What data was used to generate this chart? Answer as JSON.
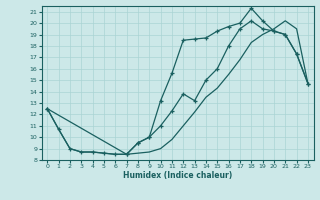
{
  "xlabel": "Humidex (Indice chaleur)",
  "bg_color": "#cce8e8",
  "line_color": "#1a6060",
  "grid_color": "#aad4d4",
  "xlim": [
    -0.5,
    23.5
  ],
  "ylim": [
    8,
    21.5
  ],
  "xticks": [
    0,
    1,
    2,
    3,
    4,
    5,
    6,
    7,
    8,
    9,
    10,
    11,
    12,
    13,
    14,
    15,
    16,
    17,
    18,
    19,
    20,
    21,
    22,
    23
  ],
  "yticks": [
    8,
    9,
    10,
    11,
    12,
    13,
    14,
    15,
    16,
    17,
    18,
    19,
    20,
    21
  ],
  "line1_x": [
    0,
    1,
    2,
    3,
    4,
    5,
    6,
    7,
    8,
    9,
    10,
    11,
    12,
    13,
    14,
    15,
    16,
    17,
    18,
    19,
    20,
    21,
    22,
    23
  ],
  "line1_y": [
    12.5,
    10.7,
    9.0,
    8.7,
    8.7,
    8.6,
    8.5,
    8.5,
    9.5,
    10.0,
    13.2,
    15.6,
    18.5,
    18.6,
    18.7,
    19.3,
    19.7,
    20.0,
    21.3,
    20.2,
    19.3,
    19.0,
    17.3,
    14.7
  ],
  "line2_x": [
    0,
    1,
    2,
    3,
    4,
    5,
    6,
    7,
    8,
    9,
    10,
    11,
    12,
    13,
    14,
    15,
    16,
    17,
    18,
    19,
    20,
    21,
    22,
    23
  ],
  "line2_y": [
    12.5,
    10.7,
    9.0,
    8.7,
    8.7,
    8.6,
    8.5,
    8.5,
    8.6,
    8.7,
    9.0,
    9.8,
    11.0,
    12.2,
    13.5,
    14.3,
    15.5,
    16.8,
    18.3,
    19.0,
    19.5,
    20.2,
    19.5,
    14.7
  ],
  "line3_x": [
    0,
    7,
    8,
    9,
    10,
    11,
    12,
    13,
    14,
    15,
    16,
    17,
    18,
    19,
    20,
    21,
    22,
    23
  ],
  "line3_y": [
    12.5,
    8.5,
    9.5,
    10.0,
    11.0,
    12.3,
    13.8,
    13.2,
    15.0,
    16.0,
    18.0,
    19.5,
    20.2,
    19.5,
    19.3,
    19.0,
    17.3,
    14.7
  ]
}
